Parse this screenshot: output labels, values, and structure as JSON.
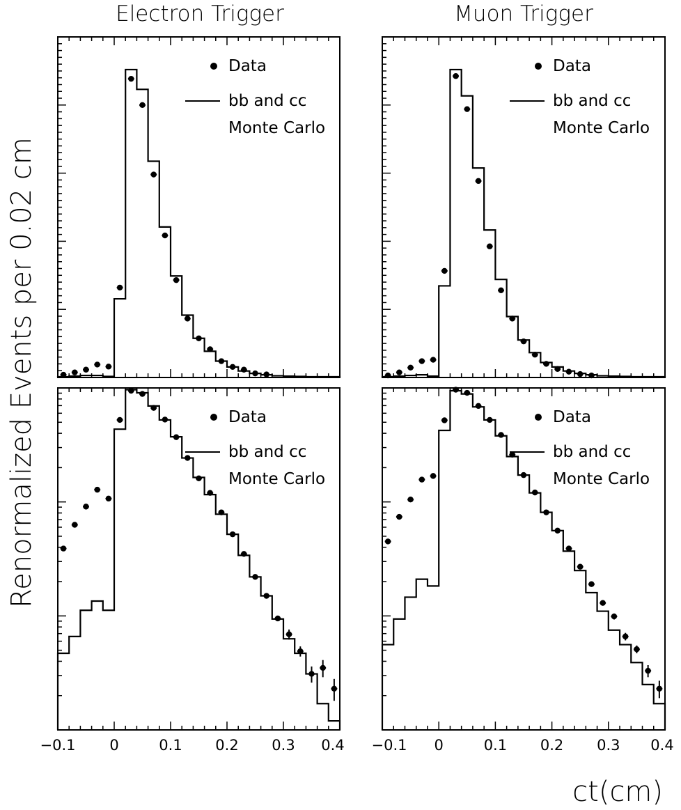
{
  "figure": {
    "ylabel": "Renormalized Events per 0.02 cm",
    "xlabel": "ct(cm)"
  },
  "columns": [
    {
      "title": "Electron Trigger"
    },
    {
      "title": "Muon Trigger"
    }
  ],
  "legend": {
    "data_label": "Data",
    "mc_label_line1": "bb and cc",
    "mc_label_line2": "Monte Carlo"
  },
  "x_tick_labels": [
    "−0.1",
    "0",
    "0.1",
    "0.2",
    "0.3",
    "0.4"
  ],
  "colors": {
    "data": "#000000",
    "mc": "#000000",
    "frame": "#000000"
  },
  "chart_data": [
    {
      "type": "scatter",
      "panel": "electron-linear",
      "title": "Electron Trigger",
      "xlim": [
        -0.1,
        0.4
      ],
      "ylim": [
        0,
        100
      ],
      "yscale": "linear",
      "legend_position": "top-right",
      "bin_width": 0.02,
      "series": [
        {
          "name": "Data",
          "style": "points-with-xerr",
          "x": [
            -0.09,
            -0.07,
            -0.05,
            -0.03,
            -0.01,
            0.01,
            0.03,
            0.05,
            0.07,
            0.09,
            0.11,
            0.13,
            0.15,
            0.17,
            0.19,
            0.21,
            0.23,
            0.25,
            0.27
          ],
          "y": [
            0.8,
            1.5,
            2.3,
            3.8,
            3.2,
            26.4,
            87.7,
            80.0,
            59.6,
            41.7,
            28.6,
            17.3,
            11.5,
            8.3,
            4.8,
            3.1,
            2.3,
            1.2,
            0.9
          ]
        },
        {
          "name": "bb and cc Monte Carlo",
          "style": "step",
          "edges": [
            -0.1,
            -0.08,
            -0.06,
            -0.04,
            -0.02,
            0,
            0.02,
            0.04,
            0.06,
            0.08,
            0.1,
            0.12,
            0.14,
            0.16,
            0.18,
            0.2,
            0.22,
            0.24,
            0.26,
            0.28,
            0.3,
            0.32,
            0.34,
            0.36,
            0.38,
            0.4
          ],
          "values": [
            0.2,
            0.4,
            0.6,
            0.6,
            0.3,
            23.1,
            90.4,
            84.6,
            63.5,
            44.2,
            29.8,
            18.3,
            11.5,
            7.7,
            4.8,
            3.1,
            1.9,
            1.2,
            0.8,
            0.5,
            0.4,
            0.3,
            0.2,
            0.2,
            0.2
          ]
        }
      ]
    },
    {
      "type": "scatter",
      "panel": "muon-linear",
      "title": "Muon Trigger",
      "xlim": [
        -0.1,
        0.4
      ],
      "ylim": [
        0,
        100
      ],
      "yscale": "linear",
      "legend_position": "top-right",
      "bin_width": 0.02,
      "series": [
        {
          "name": "Data",
          "style": "points-with-xerr",
          "x": [
            -0.09,
            -0.07,
            -0.05,
            -0.03,
            -0.01,
            0.01,
            0.03,
            0.05,
            0.07,
            0.09,
            0.11,
            0.13,
            0.15,
            0.17,
            0.19,
            0.21,
            0.23,
            0.25,
            0.27
          ],
          "y": [
            0.6,
            1.5,
            2.9,
            4.8,
            5.2,
            31.3,
            88.5,
            78.8,
            57.7,
            38.5,
            25.6,
            17.3,
            10.6,
            6.7,
            4.0,
            2.5,
            1.7,
            1.0,
            0.6
          ]
        },
        {
          "name": "bb and cc Monte Carlo",
          "style": "step",
          "edges": [
            -0.1,
            -0.08,
            -0.06,
            -0.04,
            -0.02,
            0,
            0.02,
            0.04,
            0.06,
            0.08,
            0.1,
            0.12,
            0.14,
            0.16,
            0.18,
            0.2,
            0.22,
            0.24,
            0.26,
            0.28,
            0.3,
            0.32,
            0.34,
            0.36,
            0.38,
            0.4
          ],
          "values": [
            0.2,
            0.4,
            0.6,
            0.8,
            0.4,
            26.9,
            90.4,
            82.7,
            61.5,
            43.3,
            28.8,
            17.9,
            11.0,
            7.3,
            4.4,
            3.1,
            1.9,
            1.2,
            0.8,
            0.5,
            0.4,
            0.3,
            0.2,
            0.2,
            0.2
          ]
        }
      ]
    },
    {
      "type": "scatter",
      "panel": "electron-log",
      "title": "",
      "xlim": [
        -0.1,
        0.4
      ],
      "ylim": [
        0.001,
        1
      ],
      "yscale": "log",
      "legend_position": "top-right",
      "bin_width": 0.02,
      "series": [
        {
          "name": "Data",
          "style": "points-with-xerr",
          "x": [
            -0.09,
            -0.07,
            -0.05,
            -0.03,
            -0.01,
            0.01,
            0.03,
            0.05,
            0.07,
            0.09,
            0.11,
            0.13,
            0.15,
            0.17,
            0.19,
            0.21,
            0.23,
            0.25,
            0.27,
            0.29,
            0.31,
            0.33,
            0.35,
            0.37,
            0.39
          ],
          "y": [
            0.039,
            0.063,
            0.091,
            0.128,
            0.107,
            0.524,
            0.945,
            0.886,
            0.668,
            0.528,
            0.37,
            0.243,
            0.161,
            0.12,
            0.081,
            0.052,
            0.035,
            0.022,
            0.015,
            0.0095,
            0.0069,
            0.0049,
            0.0031,
            0.0035,
            0.0023
          ],
          "yerr": [
            0,
            0,
            0,
            0,
            0,
            0,
            0,
            0,
            0,
            0,
            0,
            0,
            0,
            0,
            0,
            0,
            0,
            0,
            0,
            0,
            0.0007,
            0.0005,
            0.0005,
            0.0006,
            0.0005
          ]
        },
        {
          "name": "bb and cc Monte Carlo",
          "style": "step",
          "edges": [
            -0.1,
            -0.08,
            -0.06,
            -0.04,
            -0.02,
            0,
            0.02,
            0.04,
            0.06,
            0.08,
            0.1,
            0.12,
            0.14,
            0.16,
            0.18,
            0.2,
            0.22,
            0.24,
            0.26,
            0.28,
            0.3,
            0.32,
            0.34,
            0.36,
            0.38,
            0.4
          ],
          "values": [
            0.0047,
            0.0066,
            0.0112,
            0.0135,
            0.0112,
            0.435,
            0.965,
            0.906,
            0.695,
            0.524,
            0.373,
            0.243,
            0.164,
            0.116,
            0.078,
            0.052,
            0.034,
            0.022,
            0.015,
            0.0094,
            0.0063,
            0.0047,
            0.0031,
            0.0017,
            0.0012
          ]
        }
      ]
    },
    {
      "type": "scatter",
      "panel": "muon-log",
      "title": "",
      "xlim": [
        -0.1,
        0.4
      ],
      "ylim": [
        0.001,
        1
      ],
      "yscale": "log",
      "legend_position": "top-right",
      "bin_width": 0.02,
      "series": [
        {
          "name": "Data",
          "style": "points-with-xerr",
          "x": [
            -0.09,
            -0.07,
            -0.05,
            -0.03,
            -0.01,
            0.01,
            0.03,
            0.05,
            0.07,
            0.09,
            0.11,
            0.13,
            0.15,
            0.17,
            0.19,
            0.21,
            0.23,
            0.25,
            0.27,
            0.29,
            0.31,
            0.33,
            0.35,
            0.37,
            0.39
          ],
          "y": [
            0.045,
            0.074,
            0.105,
            0.157,
            0.169,
            0.52,
            0.965,
            0.906,
            0.695,
            0.524,
            0.387,
            0.26,
            0.172,
            0.121,
            0.081,
            0.056,
            0.039,
            0.027,
            0.019,
            0.013,
            0.0099,
            0.0066,
            0.0051,
            0.0033,
            0.0023
          ],
          "yerr": [
            0,
            0,
            0,
            0,
            0,
            0,
            0,
            0,
            0,
            0,
            0,
            0,
            0,
            0,
            0,
            0,
            0,
            0,
            0,
            0,
            0.0006,
            0.0005,
            0.0004,
            0.0004,
            0.0004
          ]
        },
        {
          "name": "bb and cc Monte Carlo",
          "style": "step",
          "edges": [
            -0.1,
            -0.08,
            -0.06,
            -0.04,
            -0.02,
            0,
            0.02,
            0.04,
            0.06,
            0.08,
            0.1,
            0.12,
            0.14,
            0.16,
            0.18,
            0.2,
            0.22,
            0.24,
            0.26,
            0.28,
            0.3,
            0.32,
            0.34,
            0.36,
            0.38,
            0.4
          ],
          "values": [
            0.0056,
            0.0094,
            0.0146,
            0.021,
            0.0183,
            0.424,
            0.945,
            0.886,
            0.682,
            0.524,
            0.38,
            0.25,
            0.172,
            0.12,
            0.081,
            0.056,
            0.037,
            0.025,
            0.016,
            0.011,
            0.0075,
            0.0056,
            0.0039,
            0.0025,
            0.0017
          ]
        }
      ]
    }
  ]
}
